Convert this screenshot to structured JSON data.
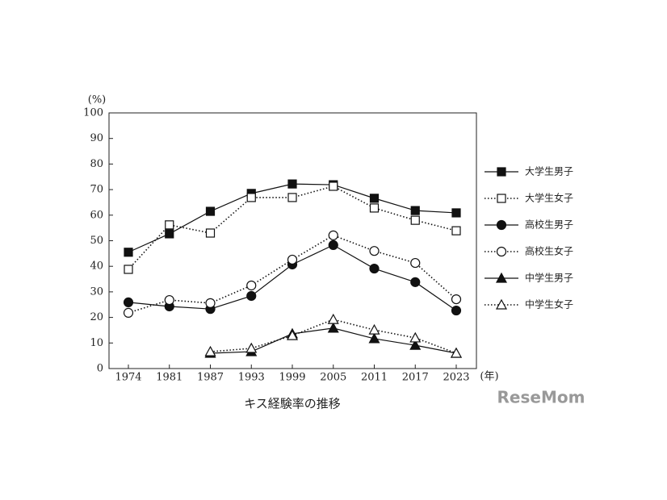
{
  "chart_data": {
    "type": "line",
    "title": "キス経験率の推移",
    "y_label": "(%)",
    "x_label": "(年)",
    "categories": [
      "1974",
      "1981",
      "1987",
      "1993",
      "1999",
      "2005",
      "2011",
      "2017",
      "2023"
    ],
    "ylim": [
      0,
      100
    ],
    "yticks": [
      0,
      10,
      20,
      30,
      40,
      50,
      60,
      70,
      80,
      90,
      100
    ],
    "grid": false,
    "legend": "right",
    "watermark": "ReseMom",
    "series": [
      {
        "name": "大学生男子",
        "color": "#111111",
        "marker": "square",
        "filled": true,
        "dashed": false,
        "values": [
          45.5,
          52.7,
          61.5,
          68.5,
          72.2,
          71.9,
          66.6,
          61.8,
          60.9
        ]
      },
      {
        "name": "大学生女子",
        "color": "#111111",
        "marker": "square",
        "filled": false,
        "dashed": true,
        "values": [
          38.8,
          56.2,
          53.0,
          66.9,
          66.9,
          71.3,
          62.8,
          58.0,
          53.9
        ]
      },
      {
        "name": "高校生男子",
        "color": "#111111",
        "marker": "circle",
        "filled": true,
        "dashed": false,
        "values": [
          25.9,
          24.3,
          23.3,
          28.4,
          40.7,
          48.3,
          39.1,
          33.8,
          22.7
        ]
      },
      {
        "name": "高校生女子",
        "color": "#111111",
        "marker": "circle",
        "filled": false,
        "dashed": true,
        "values": [
          21.8,
          26.8,
          25.6,
          32.5,
          42.6,
          52.1,
          46.0,
          41.3,
          27.1
        ]
      },
      {
        "name": "中学生男子",
        "color": "#111111",
        "marker": "triangle",
        "filled": true,
        "dashed": false,
        "values": [
          null,
          null,
          6.0,
          6.6,
          13.6,
          15.8,
          11.7,
          9.1,
          6.0
        ]
      },
      {
        "name": "中学生女子",
        "color": "#111111",
        "marker": "triangle",
        "filled": false,
        "dashed": true,
        "values": [
          null,
          null,
          6.6,
          7.9,
          12.9,
          19.2,
          15.1,
          12.0,
          6.0
        ]
      }
    ]
  }
}
